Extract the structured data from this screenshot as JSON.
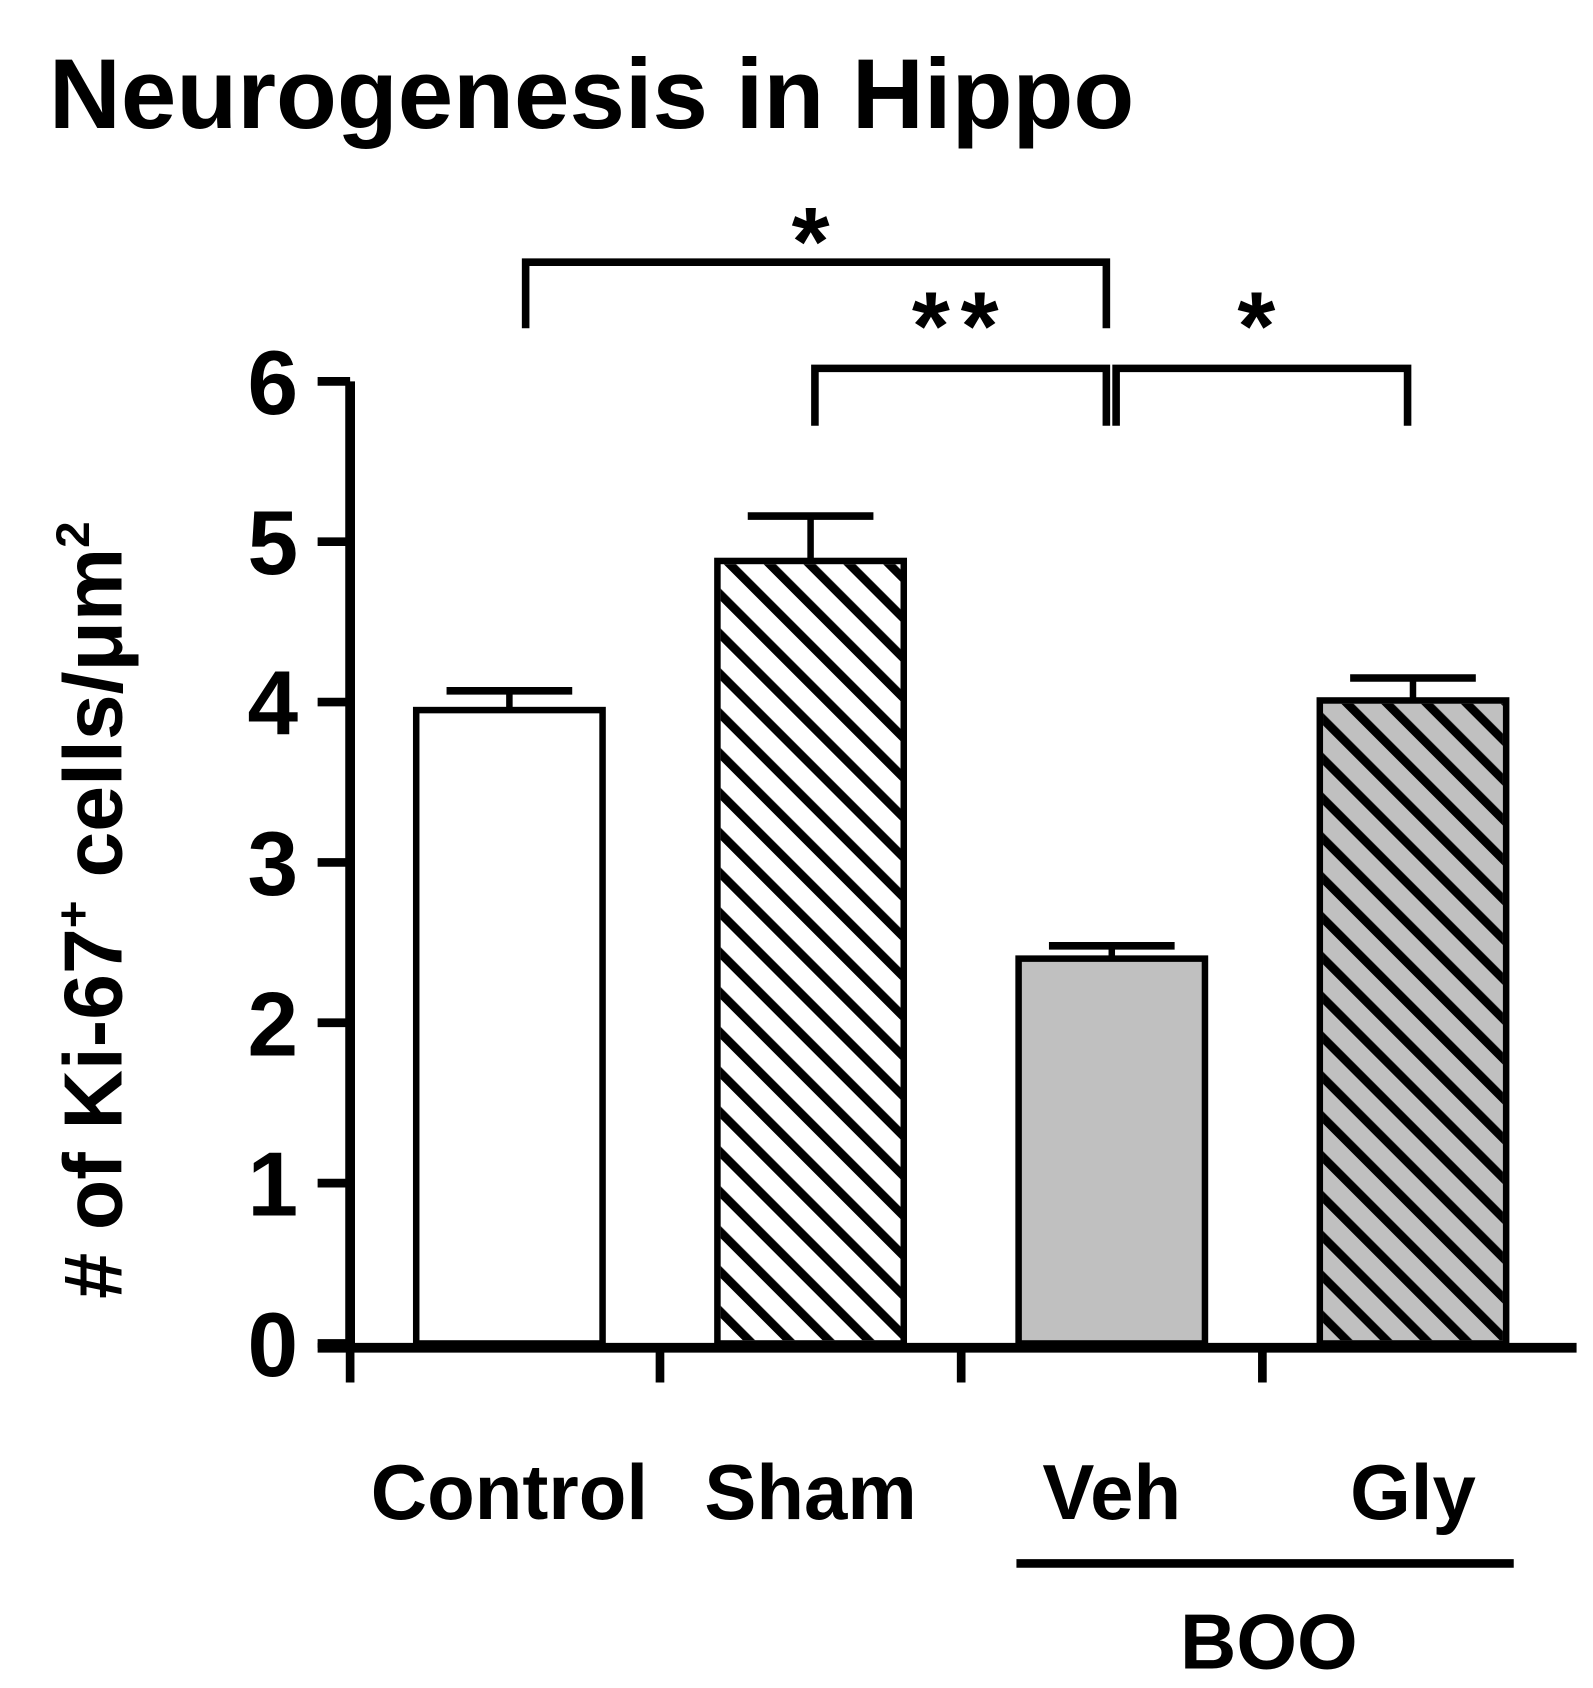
{
  "chart_data": {
    "type": "bar",
    "title": "Neurogenesis in Hippo",
    "y_label": [
      "# of Ki-67",
      "+",
      " cells/μm",
      "2"
    ],
    "categories": [
      "Control",
      "Sham",
      "Veh",
      "Gly"
    ],
    "values": [
      3.95,
      4.88,
      2.4,
      4.01
    ],
    "errors": [
      0.12,
      0.28,
      0.08,
      0.14
    ],
    "colors": [
      "#ffffff",
      "#ffffff",
      "#c0c0c0",
      "#c0c0c0"
    ],
    "hatch": [
      false,
      true,
      false,
      true
    ],
    "ylim": [
      0,
      6
    ],
    "yticks": [
      0,
      1,
      2,
      3,
      4,
      5,
      6
    ],
    "group": {
      "label": "BOO",
      "from": 2,
      "to": 3
    },
    "comparisons": [
      {
        "from": 0,
        "to": 2,
        "label": "*"
      },
      {
        "from": 1,
        "to": 2,
        "label": "**"
      },
      {
        "from": 2,
        "to": 3,
        "label": "*"
      }
    ]
  }
}
